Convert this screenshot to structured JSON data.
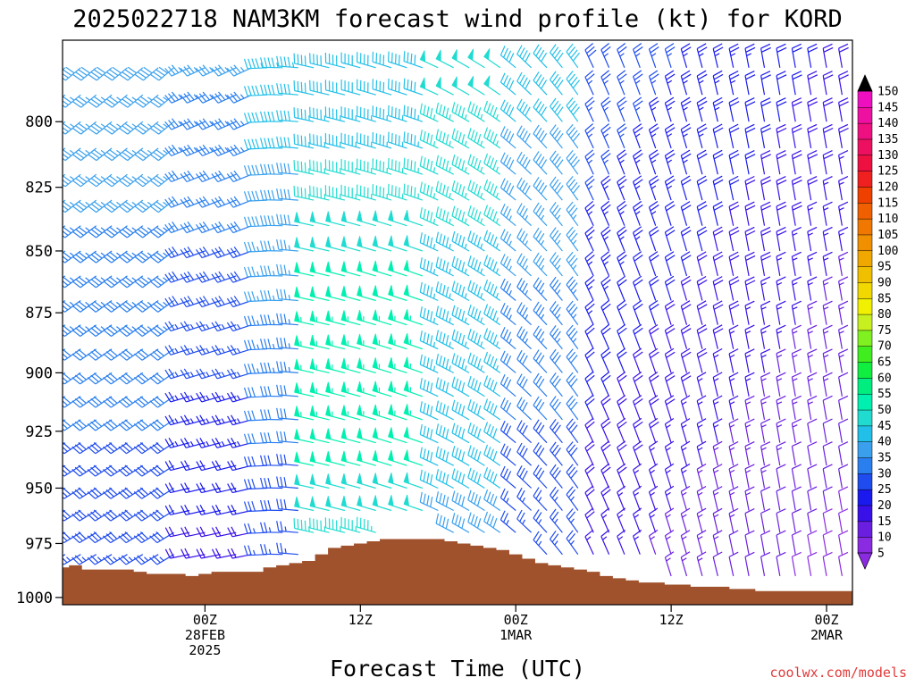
{
  "title": "2025022718 NAM3KM forecast wind profile (kt) for KORD",
  "credit": "coolwx.com/models",
  "chart_data": {
    "type": "wind-barb-profile",
    "xlabel": "Forecast Time (UTC)",
    "ylabel": "",
    "x_unit": "forecast hours from 2025-02-27 18Z",
    "xlim": [
      -5,
      56
    ],
    "ylim_hpa": [
      1000,
      770
    ],
    "y_ticks": [
      800,
      825,
      850,
      875,
      900,
      925,
      950,
      975,
      1000
    ],
    "x_ticks": [
      {
        "hour": 6,
        "label": [
          "00Z",
          "28FEB",
          "2025"
        ]
      },
      {
        "hour": 18,
        "label": [
          "12Z"
        ]
      },
      {
        "hour": 30,
        "label": [
          "00Z",
          "1MAR"
        ]
      },
      {
        "hour": 42,
        "label": [
          "12Z"
        ]
      },
      {
        "hour": 54,
        "label": [
          "00Z",
          "2MAR"
        ]
      }
    ],
    "colorbar": {
      "levels": [
        5,
        10,
        15,
        20,
        25,
        30,
        35,
        40,
        45,
        50,
        55,
        60,
        65,
        70,
        75,
        80,
        85,
        90,
        95,
        100,
        105,
        110,
        115,
        120,
        125,
        130,
        135,
        140,
        145,
        150
      ],
      "colors": [
        "#8a2be2",
        "#6a1fe0",
        "#3a10e8",
        "#1a1aee",
        "#1f4cee",
        "#2a7fef",
        "#3aa0ee",
        "#22c0e8",
        "#20dcd0",
        "#00f0b0",
        "#00ee80",
        "#10ee40",
        "#40ee20",
        "#80f020",
        "#c8f020",
        "#f0f000",
        "#f0d800",
        "#f0c000",
        "#f0a800",
        "#f09000",
        "#f07800",
        "#f06000",
        "#f04000",
        "#f02020",
        "#ee1040",
        "#ee1060",
        "#ee1080",
        "#ee10a0",
        "#ee10c0",
        "#ee10e0"
      ]
    },
    "barb_hours": [
      -4.8,
      -3.6,
      -2.4,
      -1.2,
      0,
      1.2,
      2.4,
      3.6,
      4.8,
      6,
      7.2,
      8.4,
      9.6,
      10.8,
      12,
      13.2,
      14.4,
      15.6,
      16.8,
      18,
      19.2,
      20.4,
      21.6,
      22.8,
      24,
      25.2,
      26.4,
      27.6,
      28.8,
      30,
      31.2,
      32.4,
      33.6,
      34.8,
      36,
      37.2,
      38.4,
      39.6,
      40.8,
      42,
      43.2,
      44.4,
      45.6,
      46.8,
      48,
      49.2,
      50.4,
      51.6,
      52.8,
      54,
      55.2
    ],
    "barb_levels_hpa": [
      780,
      790,
      800,
      810,
      820,
      830,
      840,
      850,
      860,
      870,
      880,
      890,
      900,
      910,
      920,
      930,
      940,
      950,
      960,
      970,
      980,
      990
    ],
    "wind_regimes": [
      {
        "hours": [
          -5,
          4
        ],
        "direction": "southwest",
        "speed_kt": [
          25,
          40
        ]
      },
      {
        "hours": [
          4,
          14
        ],
        "direction": "west",
        "speed_kt": [
          20,
          45
        ]
      },
      {
        "hours": [
          14,
          28
        ],
        "direction": "west-northwest",
        "speed_kt": [
          35,
          65
        ]
      },
      {
        "hours": [
          28,
          36
        ],
        "direction": "northwest",
        "speed_kt": [
          30,
          55
        ]
      },
      {
        "hours": [
          36,
          56
        ],
        "direction": "northwest to north",
        "speed_kt": [
          5,
          30
        ]
      }
    ],
    "surface_pressure": {
      "hours": [
        -5,
        -4,
        -3,
        -2,
        -1,
        0,
        1,
        2,
        3,
        4,
        5,
        6,
        7,
        8,
        9,
        10,
        11,
        12,
        13,
        14,
        15,
        16,
        17,
        18,
        19,
        20,
        21,
        22,
        23,
        24,
        25,
        26,
        27,
        28,
        29,
        30,
        31,
        32,
        33,
        34,
        35,
        36,
        37,
        38,
        39,
        40,
        41,
        42,
        43,
        44,
        45,
        46,
        47,
        48,
        49,
        50,
        51,
        52,
        53,
        54,
        55,
        56
      ],
      "hpa": [
        986,
        985,
        987,
        987,
        987,
        987,
        988,
        989,
        989,
        989,
        990,
        989,
        988,
        988,
        988,
        988,
        986,
        985,
        984,
        983,
        980,
        977,
        976,
        975,
        974,
        973,
        973,
        973,
        973,
        973,
        974,
        975,
        976,
        977,
        978,
        980,
        982,
        984,
        985,
        986,
        987,
        988,
        990,
        991,
        992,
        993,
        993,
        994,
        994,
        995,
        995,
        995,
        996,
        996,
        997,
        997,
        997,
        997,
        997,
        997,
        997,
        997
      ]
    }
  }
}
